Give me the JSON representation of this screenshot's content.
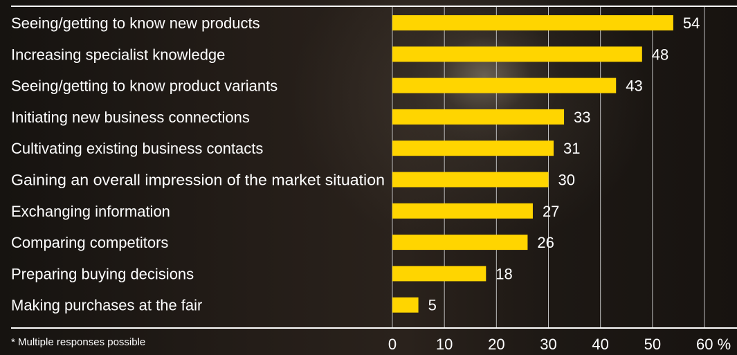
{
  "footnote": "* Multiple responses possible",
  "chart_data": {
    "type": "bar",
    "orientation": "horizontal",
    "categories": [
      "Seeing/getting to know new products",
      "Increasing specialist knowledge",
      "Seeing/getting to know product variants",
      "Initiating new business connections",
      "Cultivating existing business contacts",
      "Gaining an overall impression of the market situation",
      "Exchanging information",
      "Comparing competitors",
      "Preparing buying decisions",
      "Making purchases at the fair"
    ],
    "values": [
      54,
      48,
      43,
      33,
      31,
      30,
      27,
      26,
      18,
      5
    ],
    "x_ticks": [
      "0",
      "10",
      "20",
      "30",
      "40",
      "50",
      "60 %"
    ],
    "xlim": [
      0,
      60
    ],
    "grid": true,
    "colors": {
      "bar": "#ffd500",
      "grid": "#bdbdbd",
      "rule": "#ffffff",
      "text": "#ffffff"
    }
  }
}
